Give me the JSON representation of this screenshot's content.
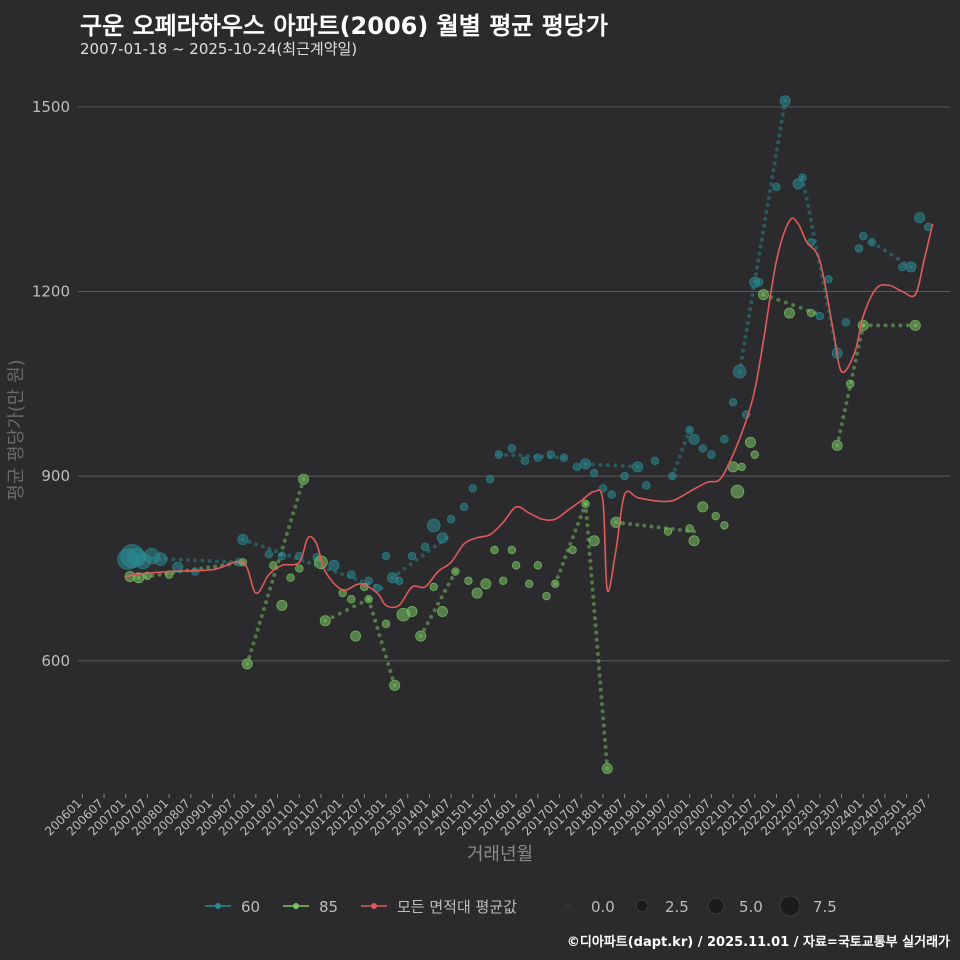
{
  "chart_data": {
    "type": "scatter",
    "title": "구운 오페라하우스 아파트(2006) 월별 평균 평당가",
    "subtitle": "2007-01-18 ~ 2025-10-24(최근계약일)",
    "xlabel": "거래년월",
    "ylabel": "평균 평당가(만 원)",
    "caption": "©디아파트(dapt.kr) / 2025.11.01 / 자료=국토교통부 실거래가",
    "ylim": [
      390,
      1560
    ],
    "xlim": [
      2005.9,
      2026.0
    ],
    "yticks": [
      600,
      900,
      1200,
      1500
    ],
    "xticks": [
      "200601",
      "200607",
      "200701",
      "200707",
      "200801",
      "200807",
      "200901",
      "200907",
      "201001",
      "201007",
      "201101",
      "201107",
      "201201",
      "201207",
      "201301",
      "201307",
      "201401",
      "201407",
      "201501",
      "201507",
      "201601",
      "201607",
      "201701",
      "201707",
      "201801",
      "201807",
      "201901",
      "201907",
      "202001",
      "202007",
      "202101",
      "202107",
      "202201",
      "202207",
      "202301",
      "202307",
      "202401",
      "202407",
      "202501",
      "202507"
    ],
    "colors": {
      "s60": "#2a8a92",
      "s85": "#7cc565",
      "avg": "#e05a5c",
      "background": "#2b2b2d",
      "grid": "#5a5a5c"
    },
    "legend": {
      "series": [
        {
          "key": "s60",
          "label": "60"
        },
        {
          "key": "s85",
          "label": "85"
        },
        {
          "key": "avg",
          "label": "모든 면적대 평균값"
        }
      ],
      "sizes": [
        "0.0",
        "2.5",
        "5.0",
        "7.5"
      ]
    },
    "series": [
      {
        "name": "60",
        "key": "s60",
        "points": [
          [
            2007.05,
            765,
            6
          ],
          [
            2007.15,
            770,
            7
          ],
          [
            2007.25,
            768,
            5
          ],
          [
            2007.4,
            762,
            4
          ],
          [
            2007.6,
            770,
            4
          ],
          [
            2007.8,
            765,
            3
          ],
          [
            2008.2,
            752,
            2
          ],
          [
            2008.6,
            745,
            1
          ],
          [
            2009.6,
            760,
            1
          ],
          [
            2009.7,
            797,
            2
          ],
          [
            2010.3,
            773,
            1
          ],
          [
            2010.6,
            770,
            1
          ],
          [
            2011.0,
            770,
            1
          ],
          [
            2011.4,
            768,
            1
          ],
          [
            2011.8,
            755,
            2
          ],
          [
            2012.2,
            740,
            1
          ],
          [
            2012.6,
            730,
            1
          ],
          [
            2012.8,
            718,
            1
          ],
          [
            2013.0,
            770,
            1
          ],
          [
            2013.15,
            735,
            2
          ],
          [
            2013.3,
            730,
            1
          ],
          [
            2013.6,
            770,
            1
          ],
          [
            2013.9,
            785,
            1
          ],
          [
            2014.1,
            820,
            3
          ],
          [
            2014.3,
            800,
            2
          ],
          [
            2014.5,
            830,
            1
          ],
          [
            2014.8,
            850,
            1
          ],
          [
            2015.0,
            880,
            1
          ],
          [
            2015.4,
            895,
            1
          ],
          [
            2015.6,
            935,
            1
          ],
          [
            2015.9,
            945,
            1
          ],
          [
            2016.2,
            925,
            1
          ],
          [
            2016.5,
            930,
            1
          ],
          [
            2016.8,
            935,
            1
          ],
          [
            2017.1,
            930,
            1
          ],
          [
            2017.4,
            915,
            1
          ],
          [
            2017.6,
            920,
            2
          ],
          [
            2017.8,
            905,
            1
          ],
          [
            2018.0,
            880,
            1
          ],
          [
            2018.2,
            870,
            1
          ],
          [
            2018.5,
            900,
            1
          ],
          [
            2018.8,
            915,
            2
          ],
          [
            2019.0,
            885,
            1
          ],
          [
            2019.2,
            925,
            1
          ],
          [
            2019.6,
            900,
            1
          ],
          [
            2020.0,
            975,
            1
          ],
          [
            2020.1,
            960,
            2
          ],
          [
            2020.3,
            945,
            1
          ],
          [
            2020.5,
            935,
            1
          ],
          [
            2020.8,
            960,
            1
          ],
          [
            2021.0,
            1020,
            1
          ],
          [
            2021.15,
            1070,
            3
          ],
          [
            2021.3,
            1000,
            1
          ],
          [
            2021.5,
            1215,
            2
          ],
          [
            2021.6,
            1215,
            1
          ],
          [
            2022.0,
            1370,
            1
          ],
          [
            2022.2,
            1510,
            2
          ],
          [
            2022.5,
            1375,
            2
          ],
          [
            2022.6,
            1385,
            1
          ],
          [
            2022.8,
            1280,
            1
          ],
          [
            2023.0,
            1160,
            1
          ],
          [
            2023.2,
            1220,
            1
          ],
          [
            2023.4,
            1100,
            2
          ],
          [
            2023.6,
            1150,
            1
          ],
          [
            2023.9,
            1270,
            1
          ],
          [
            2024.0,
            1290,
            1
          ],
          [
            2024.2,
            1280,
            1
          ],
          [
            2024.9,
            1240,
            1
          ],
          [
            2025.1,
            1240,
            2
          ],
          [
            2025.3,
            1320,
            2
          ],
          [
            2025.5,
            1305,
            1
          ]
        ],
        "dotted": [
          [
            2007.1,
            768,
            2009.6,
            760
          ],
          [
            2009.7,
            797,
            2012.9,
            718
          ],
          [
            2013.15,
            735,
            2014.4,
            800
          ],
          [
            2015.6,
            935,
            2017.1,
            930
          ],
          [
            2017.6,
            920,
            2018.8,
            915
          ],
          [
            2019.6,
            900,
            2020.0,
            975
          ],
          [
            2021.15,
            1070,
            2022.2,
            1510
          ],
          [
            2022.6,
            1385,
            2023.4,
            1100
          ],
          [
            2024.2,
            1280,
            2025.1,
            1240
          ]
        ]
      },
      {
        "name": "85",
        "key": "s85",
        "points": [
          [
            2007.1,
            737,
            2
          ],
          [
            2007.3,
            735,
            2
          ],
          [
            2007.5,
            738,
            1
          ],
          [
            2008.0,
            740,
            1
          ],
          [
            2009.7,
            760,
            1
          ],
          [
            2009.8,
            595,
            2
          ],
          [
            2010.4,
            755,
            1
          ],
          [
            2010.6,
            690,
            2
          ],
          [
            2010.8,
            735,
            1
          ],
          [
            2011.0,
            750,
            1
          ],
          [
            2011.1,
            895,
            2
          ],
          [
            2011.5,
            760,
            3
          ],
          [
            2011.6,
            665,
            2
          ],
          [
            2012.0,
            710,
            1
          ],
          [
            2012.2,
            700,
            1
          ],
          [
            2012.3,
            640,
            2
          ],
          [
            2012.5,
            720,
            1
          ],
          [
            2012.6,
            700,
            1
          ],
          [
            2013.0,
            660,
            1
          ],
          [
            2013.2,
            560,
            2
          ],
          [
            2013.4,
            675,
            3
          ],
          [
            2013.6,
            680,
            2
          ],
          [
            2013.8,
            640,
            2
          ],
          [
            2014.1,
            720,
            1
          ],
          [
            2014.3,
            680,
            2
          ],
          [
            2014.6,
            745,
            1
          ],
          [
            2014.9,
            730,
            1
          ],
          [
            2015.1,
            710,
            2
          ],
          [
            2015.3,
            725,
            2
          ],
          [
            2015.5,
            780,
            1
          ],
          [
            2015.7,
            730,
            1
          ],
          [
            2015.9,
            780,
            1
          ],
          [
            2016.0,
            755,
            1
          ],
          [
            2016.3,
            725,
            1
          ],
          [
            2016.5,
            755,
            1
          ],
          [
            2016.7,
            705,
            1
          ],
          [
            2016.9,
            725,
            1
          ],
          [
            2017.3,
            780,
            1
          ],
          [
            2017.6,
            855,
            1
          ],
          [
            2017.8,
            795,
            2
          ],
          [
            2018.1,
            425,
            2
          ],
          [
            2018.3,
            825,
            2
          ],
          [
            2019.5,
            810,
            1
          ],
          [
            2020.0,
            815,
            1
          ],
          [
            2020.1,
            795,
            2
          ],
          [
            2020.3,
            850,
            2
          ],
          [
            2020.6,
            835,
            1
          ],
          [
            2020.8,
            820,
            1
          ],
          [
            2021.0,
            915,
            2
          ],
          [
            2021.1,
            875,
            3
          ],
          [
            2021.2,
            915,
            1
          ],
          [
            2021.4,
            955,
            2
          ],
          [
            2021.5,
            935,
            1
          ],
          [
            2021.7,
            1195,
            2
          ],
          [
            2022.3,
            1165,
            2
          ],
          [
            2022.8,
            1165,
            1
          ],
          [
            2023.4,
            950,
            2
          ],
          [
            2023.7,
            1050,
            1
          ],
          [
            2024.0,
            1145,
            2
          ],
          [
            2025.2,
            1145,
            2
          ]
        ],
        "dotted": [
          [
            2007.3,
            735,
            2009.7,
            760
          ],
          [
            2009.8,
            595,
            2011.1,
            895
          ],
          [
            2011.6,
            665,
            2012.6,
            700
          ],
          [
            2012.6,
            700,
            2013.2,
            560
          ],
          [
            2013.8,
            640,
            2014.6,
            745
          ],
          [
            2016.9,
            725,
            2017.6,
            855
          ],
          [
            2017.6,
            855,
            2018.1,
            425
          ],
          [
            2018.3,
            825,
            2020.1,
            810
          ],
          [
            2021.7,
            1195,
            2022.9,
            1165
          ],
          [
            2023.4,
            950,
            2024.0,
            1145
          ],
          [
            2024.0,
            1145,
            2025.2,
            1145
          ]
        ]
      }
    ],
    "average_line": [
      [
        2007.0,
        735
      ],
      [
        2007.2,
        740
      ],
      [
        2008.0,
        745
      ],
      [
        2009.0,
        748
      ],
      [
        2009.7,
        760
      ],
      [
        2010.0,
        710
      ],
      [
        2010.3,
        740
      ],
      [
        2010.6,
        755
      ],
      [
        2011.0,
        760
      ],
      [
        2011.2,
        800
      ],
      [
        2011.4,
        790
      ],
      [
        2011.6,
        745
      ],
      [
        2012.0,
        715
      ],
      [
        2012.4,
        725
      ],
      [
        2012.8,
        710
      ],
      [
        2013.0,
        690
      ],
      [
        2013.3,
        690
      ],
      [
        2013.6,
        720
      ],
      [
        2013.9,
        720
      ],
      [
        2014.2,
        745
      ],
      [
        2014.5,
        760
      ],
      [
        2014.8,
        790
      ],
      [
        2015.1,
        800
      ],
      [
        2015.4,
        805
      ],
      [
        2015.7,
        825
      ],
      [
        2016.0,
        850
      ],
      [
        2016.3,
        840
      ],
      [
        2016.6,
        830
      ],
      [
        2016.9,
        830
      ],
      [
        2017.2,
        845
      ],
      [
        2017.5,
        860
      ],
      [
        2017.8,
        875
      ],
      [
        2018.0,
        860
      ],
      [
        2018.1,
        715
      ],
      [
        2018.3,
        780
      ],
      [
        2018.5,
        870
      ],
      [
        2018.8,
        865
      ],
      [
        2019.2,
        860
      ],
      [
        2019.6,
        860
      ],
      [
        2020.0,
        875
      ],
      [
        2020.4,
        890
      ],
      [
        2020.7,
        895
      ],
      [
        2021.0,
        935
      ],
      [
        2021.3,
        990
      ],
      [
        2021.5,
        1040
      ],
      [
        2021.7,
        1120
      ],
      [
        2022.0,
        1250
      ],
      [
        2022.3,
        1315
      ],
      [
        2022.5,
        1310
      ],
      [
        2022.7,
        1280
      ],
      [
        2023.0,
        1250
      ],
      [
        2023.3,
        1140
      ],
      [
        2023.5,
        1070
      ],
      [
        2023.8,
        1100
      ],
      [
        2024.0,
        1160
      ],
      [
        2024.3,
        1205
      ],
      [
        2024.6,
        1210
      ],
      [
        2024.9,
        1200
      ],
      [
        2025.2,
        1195
      ],
      [
        2025.4,
        1250
      ],
      [
        2025.6,
        1310
      ]
    ]
  }
}
